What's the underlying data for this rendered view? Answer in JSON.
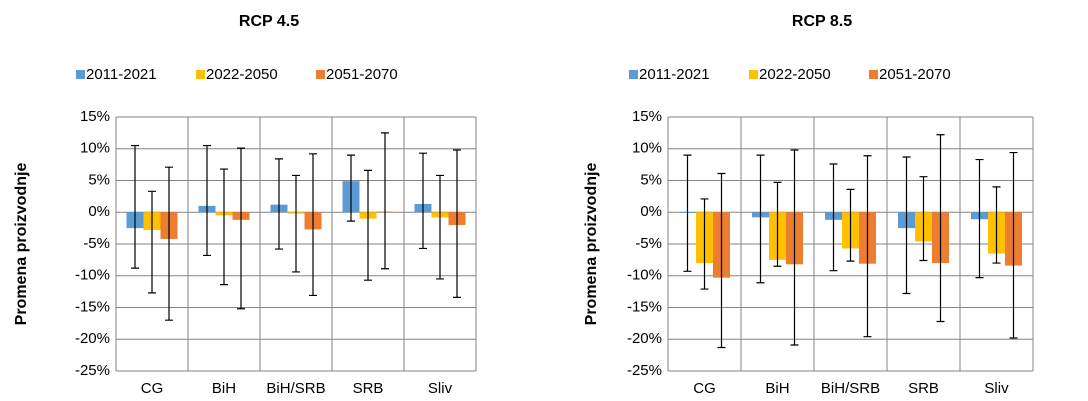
{
  "chart_data": [
    {
      "type": "bar",
      "title": "RCP 4.5",
      "y_label": "Promena proizvodnje",
      "categories": [
        "CG",
        "BiH",
        "BiH/SRB",
        "SRB",
        "Sliv"
      ],
      "series": [
        {
          "name": "2011-2021",
          "color": "#5b9bd5",
          "values": [
            -2.5,
            1.0,
            1.2,
            4.9,
            1.3
          ],
          "err_low": [
            -8.8,
            -6.8,
            -5.8,
            -1.4,
            -5.7
          ],
          "err_high": [
            10.5,
            10.5,
            8.4,
            9.0,
            9.3
          ]
        },
        {
          "name": "2022-2050",
          "color": "#ffc000",
          "values": [
            -2.8,
            -0.5,
            -0.2,
            -1.0,
            -0.8
          ],
          "err_low": [
            -12.7,
            -11.4,
            -9.4,
            -10.7,
            -10.5
          ],
          "err_high": [
            3.3,
            6.8,
            5.8,
            6.6,
            5.8
          ]
        },
        {
          "name": "2051-2070",
          "color": "#ed7d31",
          "values": [
            -4.2,
            -1.2,
            -2.7,
            0.1,
            -2.0
          ],
          "err_low": [
            -17.0,
            -15.2,
            -13.1,
            -8.9,
            -13.4
          ],
          "err_high": [
            7.1,
            10.1,
            9.2,
            12.5,
            9.8
          ]
        }
      ],
      "ylim": [
        -25,
        15
      ],
      "yticks": [
        {
          "value": -25,
          "label": "-25%"
        },
        {
          "value": -20,
          "label": "-20%"
        },
        {
          "value": -15,
          "label": "-15%"
        },
        {
          "value": -10,
          "label": "-10%"
        },
        {
          "value": -5,
          "label": "-5%"
        },
        {
          "value": 0,
          "label": "0%"
        },
        {
          "value": 5,
          "label": "5%"
        },
        {
          "value": 10,
          "label": "10%"
        },
        {
          "value": 15,
          "label": "15%"
        }
      ],
      "grid": true
    },
    {
      "type": "bar",
      "title": "RCP 8.5",
      "y_label": "Promena proizvodnje",
      "categories": [
        "CG",
        "BiH",
        "BiH/SRB",
        "SRB",
        "Sliv"
      ],
      "series": [
        {
          "name": "2011-2021",
          "color": "#5b9bd5",
          "values": [
            -0.1,
            -0.8,
            -1.2,
            -2.5,
            -1.1
          ],
          "err_low": [
            -9.3,
            -11.1,
            -9.2,
            -12.8,
            -10.3
          ],
          "err_high": [
            9.0,
            9.0,
            7.6,
            8.7,
            8.3
          ]
        },
        {
          "name": "2022-2050",
          "color": "#ffc000",
          "values": [
            -8.0,
            -7.5,
            -5.7,
            -4.6,
            -6.5
          ],
          "err_low": [
            -12.1,
            -8.5,
            -7.7,
            -7.6,
            -8.0
          ],
          "err_high": [
            2.1,
            4.7,
            3.6,
            5.6,
            4.0
          ]
        },
        {
          "name": "2051-2070",
          "color": "#ed7d31",
          "values": [
            -10.3,
            -8.2,
            -8.1,
            -8.0,
            -8.4
          ],
          "err_low": [
            -21.3,
            -20.9,
            -19.6,
            -17.2,
            -19.8
          ],
          "err_high": [
            6.1,
            9.8,
            8.9,
            12.2,
            9.4
          ]
        }
      ],
      "ylim": [
        -25,
        15
      ],
      "yticks": [
        {
          "value": -25,
          "label": "-25%"
        },
        {
          "value": -20,
          "label": "-20%"
        },
        {
          "value": -15,
          "label": "-15%"
        },
        {
          "value": -10,
          "label": "-10%"
        },
        {
          "value": -5,
          "label": "-5%"
        },
        {
          "value": 0,
          "label": "0%"
        },
        {
          "value": 5,
          "label": "5%"
        },
        {
          "value": 10,
          "label": "10%"
        },
        {
          "value": 15,
          "label": "15%"
        }
      ],
      "grid": true
    }
  ]
}
